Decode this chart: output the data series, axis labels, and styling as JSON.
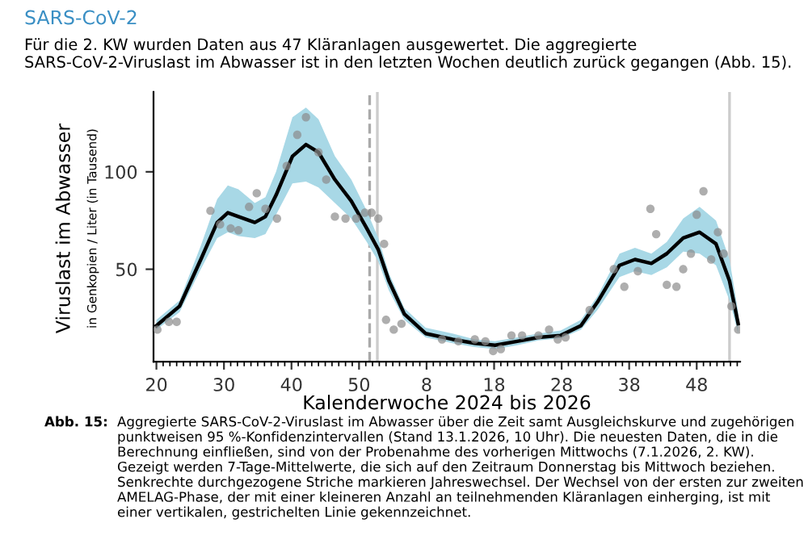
{
  "chart_data": {
    "type": "line",
    "title": "SARS-CoV-2",
    "subtitle": "Für die 2. KW wurden Daten aus 47 Kläranlagen ausgewertet. Die aggregierte SARS-CoV-2-Viruslast im Abwasser ist in den letzten Wochen deutlich zurück gegangen (Abb. 15).",
    "xlabel": "Kalenderwoche 2024 bis 2026",
    "ylabel": "Viruslast im Abwasser",
    "y2label": "in Genkopien / Liter (in Tausend)",
    "annotations": [
      "Abb. 15:",
      "Aggregierte SARS-CoV-2-Viruslast im Abwasser über die Zeit samt Ausgleichskurve und zugehörigen punktweisen 95 %-Konfidenzintervallen (Stand 13.1.2026, 10 Uhr). Die neuesten Daten, die in die Berechnung einfließen, sind von der Probenahme des vorherigen Mittwochs (7.1.2026, 2. KW). Gezeigt werden 7-Tage-Mittelwerte, die sich auf den Zeitraum Donnerstag bis Mittwoch beziehen. Senkrechte durchgezogene Striche markieren Jahreswechsel. Der Wechsel von der ersten zur zweiten AMELAG-Phase, der mit einer kleineren Anzahl an teilnehmenden Kläranlagen einherging, ist mit einer vertikalen, gestrichelten Linie gekennzeichnet."
    ],
    "xlim": [
      "2024-05-10",
      "2026-01-08"
    ],
    "ylim": [
      2.5,
      141
    ],
    "xticks": [
      {
        "value": "2024-05-13",
        "label": "20"
      },
      {
        "value": "2024-07-22",
        "label": "30"
      },
      {
        "value": "2024-09-30",
        "label": "40"
      },
      {
        "value": "2024-12-09",
        "label": "50"
      },
      {
        "value": "2025-02-17",
        "label": "8"
      },
      {
        "value": "2025-04-28",
        "label": "18"
      },
      {
        "value": "2025-07-07",
        "label": "28"
      },
      {
        "value": "2025-09-15",
        "label": "38"
      },
      {
        "value": "2025-11-24",
        "label": "48"
      }
    ],
    "yticks": [
      50,
      100
    ],
    "ref_lines": [
      {
        "axis": "x",
        "value": "2024-12-28",
        "label": null,
        "color": "#cccccc",
        "line_style": "solid"
      },
      {
        "axis": "x",
        "value": "2025-12-28",
        "label": null,
        "color": "#cccccc",
        "line_style": "solid"
      },
      {
        "axis": "x",
        "value": "2024-12-20",
        "label": null,
        "color": "#aaaaaa",
        "line_style": "dashed"
      }
    ],
    "series": [
      {
        "color": "#000000",
        "marker": "none",
        "line_style": "solid",
        "x": [
          "2024-05-13",
          "2024-06-06",
          "2024-06-28",
          "2024-07-15",
          "2024-07-26",
          "2024-08-06",
          "2024-08-23",
          "2024-09-03",
          "2024-09-14",
          "2024-10-01",
          "2024-10-15",
          "2024-10-28",
          "2024-11-14",
          "2024-12-01",
          "2024-12-17",
          "2024-12-29",
          "2025-01-09",
          "2025-01-25",
          "2025-02-16",
          "2025-03-16",
          "2025-04-08",
          "2025-04-29",
          "2025-05-22",
          "2025-06-13",
          "2025-07-06",
          "2025-07-27",
          "2025-08-13",
          "2025-09-05",
          "2025-09-21",
          "2025-10-08",
          "2025-10-24",
          "2025-11-10",
          "2025-11-27",
          "2025-12-14",
          "2025-12-28",
          "2026-01-06"
        ],
        "values": [
          21,
          31,
          55,
          74,
          79,
          77,
          74,
          77,
          88,
          108,
          114,
          110,
          96,
          85,
          71,
          60,
          44,
          27,
          17,
          14,
          12,
          11,
          13,
          15,
          16,
          21,
          33,
          52,
          55,
          53,
          58,
          66,
          69,
          63,
          44,
          22
        ],
        "lower": [
          19,
          28,
          50,
          66,
          69,
          67,
          66,
          68,
          78,
          94,
          95,
          92,
          84,
          76,
          64,
          54,
          39,
          24,
          15,
          12,
          10,
          9,
          11,
          13.5,
          14.5,
          19,
          29,
          46,
          49,
          47,
          51,
          59,
          58,
          52,
          34,
          17
        ],
        "upper": [
          24,
          34,
          62,
          86,
          93,
          91,
          84,
          87,
          100,
          128,
          133,
          127,
          108,
          96,
          80,
          66,
          48,
          30,
          20,
          17,
          14,
          13,
          15,
          17,
          18.5,
          24,
          36,
          58,
          61,
          58,
          64,
          76,
          82,
          75,
          55,
          28
        ]
      },
      {
        "type": "scatter",
        "color": "#8c8c8c",
        "marker": "circle",
        "x": [
          "2024-05-14",
          "2024-05-26",
          "2024-06-03",
          "2024-07-08",
          "2024-07-18",
          "2024-07-29",
          "2024-08-06",
          "2024-08-17",
          "2024-08-25",
          "2024-09-03",
          "2024-09-15",
          "2024-09-25",
          "2024-10-06",
          "2024-10-15",
          "2024-10-28",
          "2024-11-05",
          "2024-11-14",
          "2024-11-25",
          "2024-12-06",
          "2024-12-15",
          "2024-12-22",
          "2024-12-29",
          "2025-01-04",
          "2025-01-06",
          "2025-01-14",
          "2025-01-22",
          "2025-03-05",
          "2025-03-22",
          "2025-04-08",
          "2025-04-19",
          "2025-04-27",
          "2025-05-05",
          "2025-05-16",
          "2025-05-27",
          "2025-06-13",
          "2025-06-24",
          "2025-07-03",
          "2025-07-11",
          "2025-08-05",
          "2025-08-30",
          "2025-09-10",
          "2025-09-24",
          "2025-10-07",
          "2025-10-13",
          "2025-10-24",
          "2025-11-03",
          "2025-11-10",
          "2025-11-18",
          "2025-11-24",
          "2025-12-01",
          "2025-12-09",
          "2025-12-16",
          "2025-12-22",
          "2025-12-30",
          "2026-01-06"
        ],
        "values": [
          19,
          23,
          23,
          80,
          73,
          71,
          70,
          82,
          89,
          81,
          76,
          103,
          119,
          128,
          110,
          96,
          77,
          76,
          76,
          79,
          79,
          76,
          63,
          24,
          19,
          22,
          14,
          13,
          14,
          13,
          8,
          9,
          16,
          16,
          16,
          19,
          14,
          15,
          29,
          50,
          41,
          49,
          81,
          68,
          42,
          41,
          50,
          58,
          78,
          90,
          55,
          69,
          58,
          31,
          19
        ]
      }
    ]
  }
}
